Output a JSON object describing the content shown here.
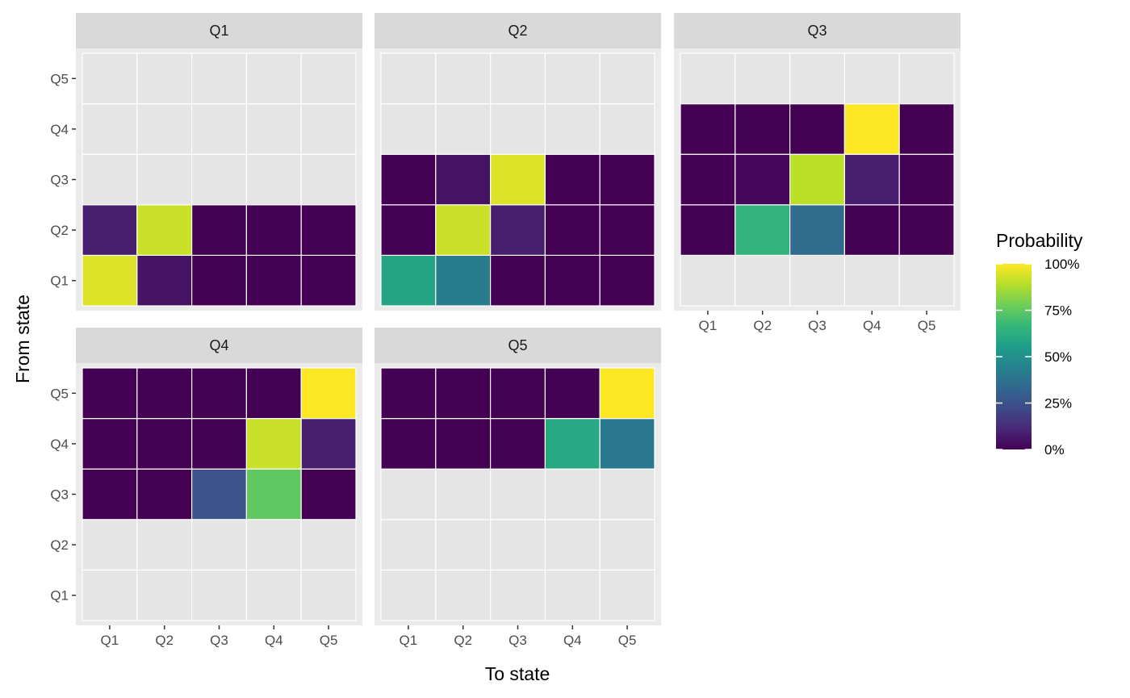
{
  "chart_data": {
    "type": "heatmap",
    "xlabel": "To state",
    "ylabel": "From state",
    "states": [
      "Q1",
      "Q2",
      "Q3",
      "Q4",
      "Q5"
    ],
    "colors": {
      "panel_bg": "#ebebeb",
      "strip_bg": "#d9d9d9",
      "na_tile": "#e5e5e5",
      "grid": "#ffffff",
      "tile_border": "#ffffff",
      "viridis": [
        "#440154",
        "#482878",
        "#3e4a89",
        "#31688e",
        "#26828e",
        "#1f9e89",
        "#35b779",
        "#6ece58",
        "#b5de2b",
        "#fde725"
      ]
    },
    "legend": {
      "title": "Probability",
      "labels": [
        "0%",
        "25%",
        "50%",
        "75%",
        "100%"
      ],
      "values": [
        0,
        0.25,
        0.5,
        0.75,
        1.0
      ]
    },
    "panels": [
      {
        "title": "Q1",
        "rows": [
          {
            "from": "Q1",
            "values": [
              0.95,
              0.05,
              0.0,
              0.0,
              0.0
            ]
          },
          {
            "from": "Q2",
            "values": [
              0.08,
              0.92,
              0.0,
              0.0,
              0.0
            ]
          },
          {
            "from": "Q3",
            "values": null
          },
          {
            "from": "Q4",
            "values": null
          },
          {
            "from": "Q5",
            "values": null
          }
        ]
      },
      {
        "title": "Q2",
        "rows": [
          {
            "from": "Q1",
            "values": [
              0.58,
              0.42,
              0.0,
              0.0,
              0.0
            ]
          },
          {
            "from": "Q2",
            "values": [
              0.0,
              0.92,
              0.08,
              0.0,
              0.0
            ]
          },
          {
            "from": "Q3",
            "values": [
              0.0,
              0.05,
              0.95,
              0.0,
              0.0
            ]
          },
          {
            "from": "Q4",
            "values": null
          },
          {
            "from": "Q5",
            "values": null
          }
        ]
      },
      {
        "title": "Q3",
        "rows": [
          {
            "from": "Q1",
            "values": null
          },
          {
            "from": "Q2",
            "values": [
              0.0,
              0.65,
              0.35,
              0.0,
              0.0
            ]
          },
          {
            "from": "Q3",
            "values": [
              0.0,
              0.02,
              0.9,
              0.08,
              0.0
            ]
          },
          {
            "from": "Q4",
            "values": [
              0.0,
              0.0,
              0.0,
              1.0,
              0.0
            ]
          },
          {
            "from": "Q5",
            "values": null
          }
        ]
      },
      {
        "title": "Q4",
        "rows": [
          {
            "from": "Q1",
            "values": null
          },
          {
            "from": "Q2",
            "values": null
          },
          {
            "from": "Q3",
            "values": [
              0.0,
              0.0,
              0.25,
              0.75,
              0.0
            ]
          },
          {
            "from": "Q4",
            "values": [
              0.0,
              0.0,
              0.0,
              0.92,
              0.08
            ]
          },
          {
            "from": "Q5",
            "values": [
              0.0,
              0.0,
              0.0,
              0.0,
              1.0
            ]
          }
        ]
      },
      {
        "title": "Q5",
        "rows": [
          {
            "from": "Q1",
            "values": null
          },
          {
            "from": "Q2",
            "values": null
          },
          {
            "from": "Q3",
            "values": null
          },
          {
            "from": "Q4",
            "values": [
              0.0,
              0.0,
              0.0,
              0.6,
              0.4
            ]
          },
          {
            "from": "Q5",
            "values": [
              0.0,
              0.0,
              0.0,
              0.0,
              1.0
            ]
          }
        ]
      }
    ]
  }
}
